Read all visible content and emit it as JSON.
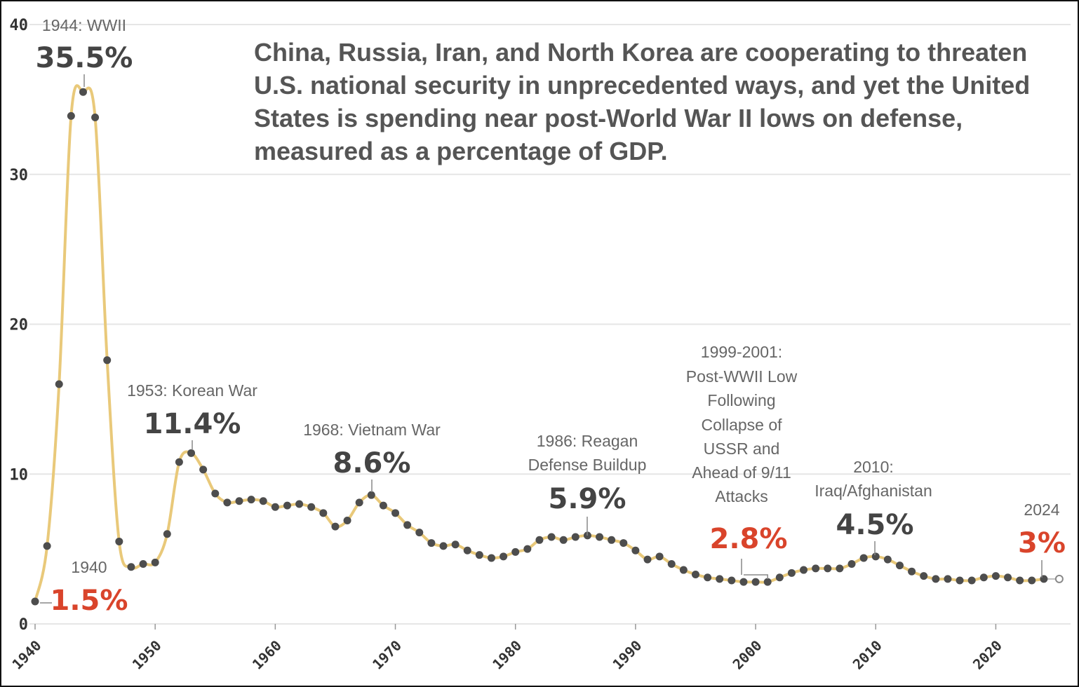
{
  "chart_data": {
    "type": "line",
    "title": "China, Russia, Iran, and North Korea are cooperating to threaten U.S. national security in unprecedented ways, and yet the United States is spending near post-World War II lows on defense, measured as a percentage of GDP.",
    "title_lines": [
      "China, Russia, Iran, and North Korea are cooperating to threaten",
      "U.S. national security in unprecedented ways, and yet the United",
      "States is spending near post-World War II lows on defense,",
      "measured as a percentage of GDP."
    ],
    "xlabel": "",
    "ylabel": "",
    "xlim": [
      1940,
      2025
    ],
    "ylim": [
      0,
      40
    ],
    "grid": true,
    "line_color": "#e9c97a",
    "point_color": "#4d4d4d",
    "highlight_color": "#d9442b",
    "value_color": "#444444",
    "y_ticks": [
      "0",
      "10",
      "20",
      "30",
      "40"
    ],
    "x_ticks": [
      "1940",
      "1950",
      "1960",
      "1970",
      "1980",
      "1990",
      "2000",
      "2010",
      "2020"
    ],
    "series": [
      {
        "x": [
          1940,
          1941,
          1942,
          1943,
          1944,
          1945,
          1946,
          1947,
          1948,
          1949,
          1950,
          1951,
          1952,
          1953,
          1954,
          1955,
          1956,
          1957,
          1958,
          1959,
          1960,
          1961,
          1962,
          1963,
          1964,
          1965,
          1966,
          1967,
          1968,
          1969,
          1970,
          1971,
          1972,
          1973,
          1974,
          1975,
          1976,
          1977,
          1978,
          1979,
          1980,
          1981,
          1982,
          1983,
          1984,
          1985,
          1986,
          1987,
          1988,
          1989,
          1990,
          1991,
          1992,
          1993,
          1994,
          1995,
          1996,
          1997,
          1998,
          1999,
          2000,
          2001,
          2002,
          2003,
          2004,
          2005,
          2006,
          2007,
          2008,
          2009,
          2010,
          2011,
          2012,
          2013,
          2014,
          2015,
          2016,
          2017,
          2018,
          2019,
          2020,
          2021,
          2022,
          2023,
          2024
        ],
        "y": [
          1.5,
          5.2,
          16.0,
          33.9,
          35.5,
          33.8,
          17.6,
          5.5,
          3.8,
          4.0,
          4.1,
          6.0,
          10.8,
          11.4,
          10.3,
          8.7,
          8.1,
          8.2,
          8.3,
          8.2,
          7.8,
          7.9,
          8.0,
          7.8,
          7.4,
          6.5,
          6.9,
          8.1,
          8.6,
          7.9,
          7.4,
          6.6,
          6.1,
          5.4,
          5.2,
          5.3,
          4.9,
          4.6,
          4.4,
          4.5,
          4.8,
          5.0,
          5.6,
          5.8,
          5.6,
          5.8,
          5.9,
          5.8,
          5.6,
          5.4,
          4.9,
          4.3,
          4.5,
          4.0,
          3.6,
          3.3,
          3.1,
          3.0,
          2.9,
          2.8,
          2.8,
          2.8,
          3.1,
          3.4,
          3.6,
          3.7,
          3.7,
          3.7,
          4.0,
          4.4,
          4.5,
          4.3,
          3.9,
          3.5,
          3.2,
          3.0,
          3.0,
          2.9,
          2.9,
          3.1,
          3.2,
          3.1,
          2.9,
          2.9,
          3.0
        ]
      }
    ],
    "annotations": [
      {
        "label": "1944: WWII",
        "value": "35.5%",
        "x": 1944,
        "y": 35.5,
        "color": "value"
      },
      {
        "label": "1953: Korean War",
        "value": "11.4%",
        "x": 1953,
        "y": 11.4,
        "color": "value"
      },
      {
        "label": "1968: Vietnam War",
        "value": "8.6%",
        "x": 1968,
        "y": 8.6,
        "color": "value"
      },
      {
        "label": "1986: Reagan Defense Buildup",
        "value": "5.9%",
        "x": 1986,
        "y": 5.9,
        "color": "value"
      },
      {
        "label": "1999-2001: Post-WWII Low Following Collapse of USSR and Ahead of 9/11 Attacks",
        "value": "2.8%",
        "x": 1999,
        "y": 2.8,
        "color": "highlight"
      },
      {
        "label": "2010: Iraq/Afghanistan",
        "value": "4.5%",
        "x": 2010,
        "y": 4.5,
        "color": "value"
      },
      {
        "label": "2024",
        "value": "3%",
        "x": 2024,
        "y": 3.0,
        "color": "highlight"
      },
      {
        "label": "1940",
        "value": "1.5%",
        "x": 1940,
        "y": 1.5,
        "color": "highlight"
      }
    ]
  }
}
